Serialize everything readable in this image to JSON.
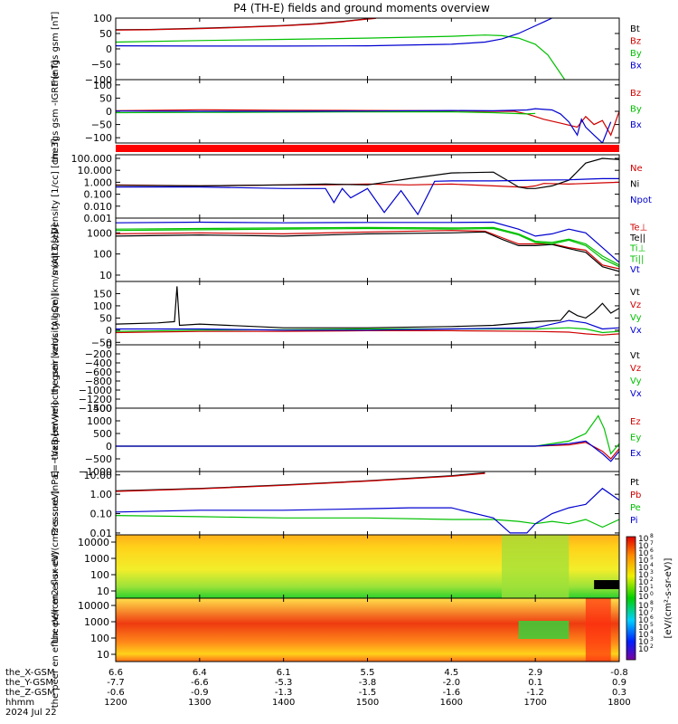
{
  "chart_data": {
    "type": "line",
    "title": "P4 (TH-E) fields and ground moments overview",
    "x_axis": {
      "row_labels": [
        "the_X-GSM",
        "the_Y-GSM",
        "the_Z-GSM",
        "hhmm",
        "2024 Jul 22"
      ],
      "hhmm": [
        "1200",
        "1300",
        "1400",
        "1500",
        "1600",
        "1700",
        "1800"
      ],
      "x_gsm": [
        "6.6",
        "6.4",
        "6.1",
        "5.5",
        "4.5",
        "2.9",
        "-0.8"
      ],
      "y_gsm": [
        "-7.7",
        "-6.6",
        "-5.3",
        "-3.8",
        "-2.0",
        "0.1",
        "0.9"
      ],
      "z_gsm": [
        "-0.6",
        "-0.9",
        "-1.3",
        "-1.5",
        "-1.6",
        "-1.2",
        "0.3"
      ],
      "range": [
        1200,
        1800
      ]
    },
    "panels": [
      {
        "ylabel": "the fgs gsm [nT]",
        "scale": "linear",
        "ylim": [
          -100,
          100
        ],
        "ticks": [
          "100",
          "50",
          "0",
          "−50",
          "−100"
        ],
        "series": [
          {
            "name": "Bt",
            "color": "#000000",
            "t": [
              1200,
              1240,
              1300,
              1340,
              1400,
              1440,
              1470,
              1490,
              1510
            ],
            "v": [
              62,
              63,
              67,
              70,
              76,
              82,
              89,
              95,
              100
            ]
          },
          {
            "name": "Bz",
            "color": "#d00000",
            "t": [
              1200,
              1240,
              1300,
              1340,
              1400,
              1440,
              1470,
              1490,
              1510
            ],
            "v": [
              61,
              62,
              66,
              69,
              75,
              81,
              88,
              94,
              99
            ]
          },
          {
            "name": "By",
            "color": "#00c000",
            "t": [
              1200,
              1300,
              1400,
              1500,
              1600,
              1640,
              1660,
              1680,
              1700,
              1715,
              1725,
              1735
            ],
            "v": [
              22,
              27,
              31,
              35,
              41,
              45,
              43,
              35,
              15,
              -20,
              -60,
              -100
            ]
          },
          {
            "name": "Bx",
            "color": "#0000d0",
            "t": [
              1200,
              1300,
              1400,
              1500,
              1600,
              1640,
              1660,
              1680,
              1700,
              1712,
              1720
            ],
            "v": [
              10,
              9,
              9,
              10,
              15,
              22,
              32,
              50,
              75,
              90,
              100
            ]
          }
        ]
      },
      {
        "ylabel": "the fgs gsm -IGRF [nT]",
        "scale": "linear",
        "ylim": [
          -120,
          120
        ],
        "ticks": [
          "100",
          "50",
          "0",
          "−50",
          "−100"
        ],
        "series": [
          {
            "name": "Bz",
            "color": "#d00000",
            "t": [
              1200,
              1300,
              1400,
              1500,
              1600,
              1650,
              1675,
              1690,
              1700,
              1710,
              1730,
              1750,
              1760,
              1770,
              1780,
              1790,
              1800
            ],
            "v": [
              2,
              6,
              4,
              3,
              2,
              0,
              0,
              -10,
              -20,
              -30,
              -45,
              -60,
              -20,
              -50,
              -35,
              -90,
              0
            ]
          },
          {
            "name": "By",
            "color": "#00c000",
            "t": [
              1200,
              1300,
              1400,
              1500,
              1600,
              1650,
              1690,
              1700
            ],
            "v": [
              -5,
              -4,
              -3,
              -2,
              -2,
              -5,
              -10,
              -8
            ]
          },
          {
            "name": "Bx",
            "color": "#0000d0",
            "t": [
              1200,
              1300,
              1400,
              1500,
              1600,
              1650,
              1690,
              1700,
              1720,
              1730,
              1740,
              1750,
              1755,
              1760,
              1770,
              1780,
              1790
            ],
            "v": [
              1,
              0,
              0,
              1,
              3,
              2,
              5,
              10,
              5,
              -10,
              -40,
              -90,
              -30,
              -60,
              -90,
              -120,
              -40
            ]
          }
        ]
      },
      {
        "ylabel": "Density [1/cc] [cm-3]",
        "scale": "log",
        "ylim": [
          0.001,
          200
        ],
        "ticks": [
          "100.000",
          "10.000",
          "1.000",
          "0.100",
          "0.010",
          "0.001"
        ],
        "series": [
          {
            "name": "Ne",
            "color": "#d00000",
            "t": [
              1200,
              1300,
              1400,
              1450,
              1500,
              1550,
              1600,
              1650,
              1680,
              1690,
              1700,
              1710,
              1740,
              1780,
              1800
            ],
            "v": [
              0.6,
              0.5,
              0.6,
              0.6,
              0.7,
              0.6,
              0.7,
              0.5,
              0.4,
              0.4,
              0.5,
              0.8,
              0.7,
              0.9,
              1.0
            ]
          },
          {
            "name": "Ni",
            "color": "#000000",
            "t": [
              1200,
              1300,
              1400,
              1450,
              1500,
              1550,
              1600,
              1650,
              1680,
              1690,
              1700,
              1720,
              1740,
              1760,
              1780,
              1800
            ],
            "v": [
              0.55,
              0.5,
              0.6,
              0.7,
              0.6,
              2,
              6,
              7,
              0.4,
              0.3,
              0.3,
              0.5,
              1.5,
              40,
              100,
              80
            ]
          },
          {
            "name": "Npot",
            "color": "#0000d0",
            "t": [
              1200,
              1300,
              1400,
              1450,
              1460,
              1470,
              1480,
              1500,
              1520,
              1540,
              1560,
              1580,
              1600,
              1650,
              1700,
              1740,
              1760,
              1780,
              1800
            ],
            "v": [
              0.4,
              0.4,
              0.3,
              0.3,
              0.02,
              0.3,
              0.05,
              0.3,
              0.003,
              0.2,
              0.002,
              1.2,
              1.3,
              1.3,
              1.5,
              1.6,
              1.8,
              2,
              2
            ]
          }
        ]
      },
      {
        "ylabel": "moqt3 [eV]",
        "scale": "log",
        "ylim": [
          5,
          5000
        ],
        "ticks": [
          "1000",
          "100",
          "10"
        ],
        "series": [
          {
            "name": "Te⊥",
            "color": "#d00000",
            "t": [
              1200,
              1300,
              1400,
              1500,
              1600,
              1640,
              1660,
              1680,
              1700,
              1720,
              1740,
              1760,
              1780,
              1800
            ],
            "v": [
              900,
              1000,
              900,
              1100,
              1300,
              1200,
              600,
              300,
              300,
              300,
              200,
              150,
              30,
              20
            ]
          },
          {
            "name": "Te||",
            "color": "#000000",
            "t": [
              1200,
              1300,
              1400,
              1500,
              1600,
              1640,
              1660,
              1680,
              1700,
              1720,
              1740,
              1760,
              1780,
              1800
            ],
            "v": [
              700,
              800,
              700,
              900,
              1000,
              1100,
              500,
              250,
              250,
              280,
              180,
              120,
              25,
              15
            ]
          },
          {
            "name": "Ti⊥",
            "color": "#00c000",
            "t": [
              1200,
              1300,
              1400,
              1500,
              1600,
              1650,
              1680,
              1700,
              1720,
              1740,
              1760,
              1780,
              1800
            ],
            "v": [
              1500,
              1600,
              1700,
              1800,
              1700,
              1800,
              900,
              400,
              350,
              500,
              300,
              80,
              30
            ]
          },
          {
            "name": "Ti||",
            "color": "#00c000",
            "t": [
              1200,
              1300,
              1400,
              1500,
              1600,
              1650,
              1680,
              1700,
              1720,
              1740,
              1760,
              1780,
              1800
            ],
            "v": [
              1300,
              1400,
              1500,
              1600,
              1500,
              1600,
              800,
              350,
              300,
              450,
              250,
              60,
              25
            ]
          },
          {
            "name": "Vt",
            "color": "#0000d0",
            "t": [
              1200,
              1300,
              1400,
              1500,
              1600,
              1650,
              1680,
              1700,
              1720,
              1740,
              1760,
              1780,
              1800
            ],
            "v": [
              3000,
              3200,
              3000,
              3100,
              3100,
              3200,
              1500,
              700,
              900,
              1500,
              1000,
              200,
              40
            ]
          }
        ]
      },
      {
        "ylabel": "the peir velocity gsm [km/s (All Qs)]",
        "scale": "linear",
        "ylim": [
          -60,
          200
        ],
        "ticks": [
          "150",
          "100",
          "50",
          "0",
          "−50"
        ],
        "series": [
          {
            "name": "Vt",
            "color": "#000000",
            "t": [
              1200,
              1250,
              1270,
              1273,
              1276,
              1300,
              1400,
              1500,
              1600,
              1650,
              1700,
              1730,
              1740,
              1750,
              1760,
              1770,
              1780,
              1790,
              1800
            ],
            "v": [
              25,
              30,
              35,
              180,
              20,
              25,
              10,
              10,
              15,
              20,
              35,
              40,
              80,
              60,
              50,
              75,
              110,
              70,
              90
            ]
          },
          {
            "name": "Vz",
            "color": "#d00000",
            "t": [
              1200,
              1300,
              1400,
              1500,
              1600,
              1700,
              1740,
              1760,
              1780,
              1800
            ],
            "v": [
              -10,
              -5,
              -5,
              -2,
              -2,
              -5,
              -8,
              -15,
              -20,
              -15
            ]
          },
          {
            "name": "Vy",
            "color": "#00c000",
            "t": [
              1200,
              1300,
              1400,
              1500,
              1600,
              1700,
              1740,
              1760,
              1780,
              1800
            ],
            "v": [
              -5,
              0,
              2,
              5,
              5,
              5,
              10,
              5,
              -10,
              -5
            ]
          },
          {
            "name": "Vx",
            "color": "#0000d0",
            "t": [
              1200,
              1300,
              1400,
              1500,
              1600,
              1700,
              1740,
              1760,
              1780,
              1800
            ],
            "v": [
              5,
              5,
              0,
              0,
              5,
              10,
              40,
              30,
              5,
              10
            ]
          }
        ]
      },
      {
        "ylabel": "the peer velocity gsm [km/s (All Qe)]",
        "scale": "linear",
        "ylim": [
          -1400,
          0
        ],
        "ticks": [
          "0",
          "−200",
          "−400",
          "−600",
          "−800",
          "−1000",
          "−1200",
          "−1400"
        ],
        "series": []
      },
      {
        "ylabel": "E=−VxB [mV/m]",
        "scale": "linear",
        "ylim": [
          -1000,
          1500
        ],
        "ticks": [
          "1500",
          "1000",
          "500",
          "0",
          "−500",
          "−1000"
        ],
        "series": [
          {
            "name": "Ez",
            "color": "#d00000",
            "t": [
              1200,
              1500,
              1700,
              1740,
              1760,
              1780,
              1790,
              1800
            ],
            "v": [
              0,
              0,
              0,
              50,
              150,
              -200,
              -500,
              -100
            ]
          },
          {
            "name": "Ey",
            "color": "#00c000",
            "t": [
              1200,
              1500,
              1700,
              1740,
              1760,
              1775,
              1782,
              1790,
              1800
            ],
            "v": [
              0,
              0,
              0,
              200,
              500,
              1200,
              700,
              -300,
              100
            ]
          },
          {
            "name": "Ex",
            "color": "#0000d0",
            "t": [
              1200,
              1500,
              1700,
              1740,
              1760,
              1780,
              1790,
              1800
            ],
            "v": [
              0,
              0,
              0,
              100,
              200,
              -300,
              -600,
              -200
            ]
          }
        ]
      },
      {
        "ylabel": "Pressure [nPa]",
        "scale": "log",
        "ylim": [
          0.008,
          15
        ],
        "ticks": [
          "10.00",
          "1.00",
          "0.10",
          "0.01"
        ],
        "series": [
          {
            "name": "Pt",
            "color": "#000000",
            "t": [
              1200,
              1300,
              1400,
              1500,
              1600,
              1640
            ],
            "v": [
              1.5,
              2,
              3,
              5,
              9,
              13
            ]
          },
          {
            "name": "Pb",
            "color": "#d00000",
            "t": [
              1200,
              1300,
              1400,
              1500,
              1600,
              1640
            ],
            "v": [
              1.4,
              1.9,
              2.9,
              4.8,
              8.5,
              12
            ]
          },
          {
            "name": "Pe",
            "color": "#00c000",
            "t": [
              1200,
              1300,
              1400,
              1500,
              1600,
              1650,
              1680,
              1700,
              1720,
              1740,
              1760,
              1780,
              1800
            ],
            "v": [
              0.08,
              0.07,
              0.06,
              0.06,
              0.05,
              0.05,
              0.04,
              0.03,
              0.04,
              0.03,
              0.05,
              0.02,
              0.05
            ]
          },
          {
            "name": "Pi",
            "color": "#0000d0",
            "t": [
              1200,
              1300,
              1400,
              1500,
              1550,
              1600,
              1650,
              1670,
              1690,
              1700,
              1720,
              1740,
              1760,
              1780,
              1800
            ],
            "v": [
              0.12,
              0.15,
              0.15,
              0.18,
              0.2,
              0.2,
              0.06,
              0.01,
              0.01,
              0.03,
              0.1,
              0.2,
              0.3,
              2,
              0.5
            ]
          }
        ]
      },
      {
        "ylabel": "the peir en eflux eV/(cm2-s-sr-eV)",
        "type": "heatmap",
        "ticks": [
          "10000",
          "1000",
          "100",
          "10"
        ]
      },
      {
        "ylabel": "the peer en eflux eV/(cm2-s-sr-eV)",
        "type": "heatmap",
        "ticks": [
          "10000",
          "1000",
          "100",
          "10"
        ]
      }
    ],
    "colorbar": {
      "label": "[eV/(cm²-s-sr-eV)]",
      "tick_exponents_upper": [
        "8",
        "7",
        "6",
        "5",
        "4",
        "3",
        "2",
        "1",
        "0"
      ],
      "tick_exponents_lower": [
        "8",
        "7",
        "6",
        "5",
        "4",
        "3",
        "2"
      ]
    },
    "red_bar": true
  }
}
